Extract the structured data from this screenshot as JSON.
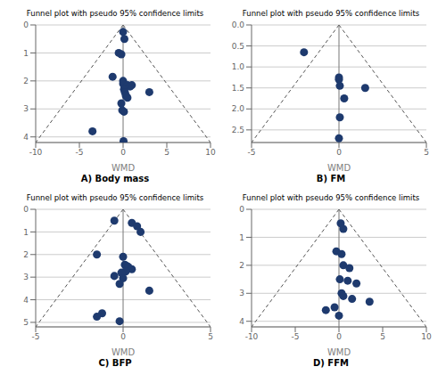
{
  "chart_data": [
    {
      "type": "scatter",
      "title": "Funnel plot with pseudo 95% confidence limits",
      "xlabel": "WMD",
      "annotations": [
        "A) Body mass"
      ],
      "xlim": [
        -10,
        10
      ],
      "ylim": [
        4.2,
        0
      ],
      "xticks": [
        -10,
        -5,
        0,
        5,
        10
      ],
      "yticks": [
        0,
        1,
        2,
        3,
        4
      ],
      "grid": true,
      "series": [
        {
          "type": "line",
          "line_style": "dashed",
          "color": "#555555",
          "x": [
            0,
            -10
          ],
          "values": [
            0,
            4.2
          ]
        },
        {
          "type": "line",
          "line_style": "dashed",
          "color": "#555555",
          "x": [
            0,
            10
          ],
          "values": [
            0,
            4.2
          ]
        },
        {
          "type": "line",
          "line_style": "solid",
          "color": "#777777",
          "x": [
            0,
            0
          ],
          "values": [
            0,
            4.2
          ]
        },
        {
          "type": "scatter",
          "color": "#1e3a6e",
          "x": [
            0.0,
            0.15,
            -0.5,
            -0.2,
            -1.2,
            0.0,
            0.0,
            0.5,
            0.8,
            1.0,
            0.1,
            0.2,
            0.3,
            0.35,
            0.5,
            3.0,
            -0.2,
            -0.1,
            0.1,
            -3.5,
            0.05
          ],
          "values": [
            0.25,
            0.5,
            1.0,
            1.05,
            1.85,
            2.0,
            2.1,
            2.15,
            2.2,
            2.15,
            2.3,
            2.4,
            2.5,
            2.55,
            2.6,
            2.4,
            2.8,
            3.05,
            3.1,
            3.8,
            4.15
          ]
        }
      ]
    },
    {
      "type": "scatter",
      "title": "Funnel plot with pseudo 95% confidence limits",
      "xlabel": "WMD",
      "annotations": [
        "B) FM"
      ],
      "xlim": [
        -5,
        5
      ],
      "ylim": [
        2.8,
        0
      ],
      "xticks": [
        -5,
        0,
        5
      ],
      "yticks": [
        {
          "value": 0,
          "label": "0.0"
        },
        {
          "value": 0.5,
          "label": "0.5"
        },
        {
          "value": 1,
          "label": "1.0"
        },
        {
          "value": 1.5,
          "label": "1.5"
        },
        {
          "value": 2,
          "label": "2.0"
        },
        {
          "value": 2.5,
          "label": "2.5"
        }
      ],
      "grid": true,
      "series": [
        {
          "type": "line",
          "line_style": "dashed",
          "color": "#555555",
          "x": [
            0,
            -5
          ],
          "values": [
            0,
            2.8
          ]
        },
        {
          "type": "line",
          "line_style": "dashed",
          "color": "#555555",
          "x": [
            0,
            5
          ],
          "values": [
            0,
            2.8
          ]
        },
        {
          "type": "line",
          "line_style": "solid",
          "color": "#777777",
          "x": [
            0,
            0
          ],
          "values": [
            0,
            2.8
          ]
        },
        {
          "type": "scatter",
          "color": "#1e3a6e",
          "x": [
            -2.0,
            0.0,
            0.0,
            0.05,
            1.5,
            0.3,
            0.05,
            0.0
          ],
          "values": [
            0.65,
            1.25,
            1.3,
            1.45,
            1.5,
            1.75,
            2.2,
            2.7
          ]
        }
      ]
    },
    {
      "type": "scatter",
      "title": "Funnel plot with pseudo 95% confidence limits",
      "xlabel": "WMD",
      "annotations": [
        "C) BFP"
      ],
      "xlim": [
        -5,
        5
      ],
      "ylim": [
        5.2,
        0
      ],
      "xticks": [
        -5,
        0,
        5
      ],
      "yticks": [
        0,
        1,
        2,
        3,
        4,
        5
      ],
      "grid": true,
      "series": [
        {
          "type": "line",
          "line_style": "dashed",
          "color": "#555555",
          "x": [
            0,
            -5
          ],
          "values": [
            0,
            5.2
          ]
        },
        {
          "type": "line",
          "line_style": "dashed",
          "color": "#555555",
          "x": [
            0,
            5
          ],
          "values": [
            0,
            5.2
          ]
        },
        {
          "type": "line",
          "line_style": "solid",
          "color": "#777777",
          "x": [
            0,
            0
          ],
          "values": [
            0,
            5.2
          ]
        },
        {
          "type": "scatter",
          "color": "#1e3a6e",
          "x": [
            -0.5,
            0.5,
            0.8,
            1.0,
            -1.5,
            0.0,
            0.1,
            0.2,
            0.3,
            0.5,
            0.15,
            -0.1,
            -0.5,
            0.0,
            -0.2,
            1.5,
            -1.2,
            -1.5,
            -0.2
          ],
          "values": [
            0.5,
            0.6,
            0.75,
            1.0,
            2.0,
            2.1,
            2.45,
            2.5,
            2.55,
            2.65,
            2.75,
            2.8,
            2.95,
            3.05,
            3.3,
            3.6,
            4.6,
            4.75,
            4.95
          ]
        }
      ]
    },
    {
      "type": "scatter",
      "title": "Funnel plot with pseudo 95% confidence limits",
      "xlabel": "WMD",
      "annotations": [
        "D) FFM"
      ],
      "xlim": [
        -10,
        10
      ],
      "ylim": [
        4.2,
        0
      ],
      "xticks": [
        -10,
        -5,
        0,
        5,
        10
      ],
      "yticks": [
        0,
        1,
        2,
        3,
        4
      ],
      "grid": true,
      "series": [
        {
          "type": "line",
          "line_style": "dashed",
          "color": "#555555",
          "x": [
            0,
            -10
          ],
          "values": [
            0,
            4.2
          ]
        },
        {
          "type": "line",
          "line_style": "dashed",
          "color": "#555555",
          "x": [
            0,
            10
          ],
          "values": [
            0,
            4.2
          ]
        },
        {
          "type": "line",
          "line_style": "solid",
          "color": "#777777",
          "x": [
            0,
            0
          ],
          "values": [
            0,
            4.2
          ]
        },
        {
          "type": "scatter",
          "color": "#1e3a6e",
          "x": [
            0.2,
            0.5,
            -0.3,
            0.3,
            0.5,
            1.2,
            0.1,
            1.0,
            2.0,
            0.3,
            0.5,
            1.5,
            -0.5,
            0.0,
            3.5,
            -1.5
          ],
          "values": [
            0.5,
            0.7,
            1.5,
            1.6,
            2.0,
            2.1,
            2.5,
            2.55,
            2.65,
            3.0,
            3.1,
            3.2,
            3.5,
            3.8,
            3.3,
            3.6
          ]
        }
      ]
    }
  ]
}
